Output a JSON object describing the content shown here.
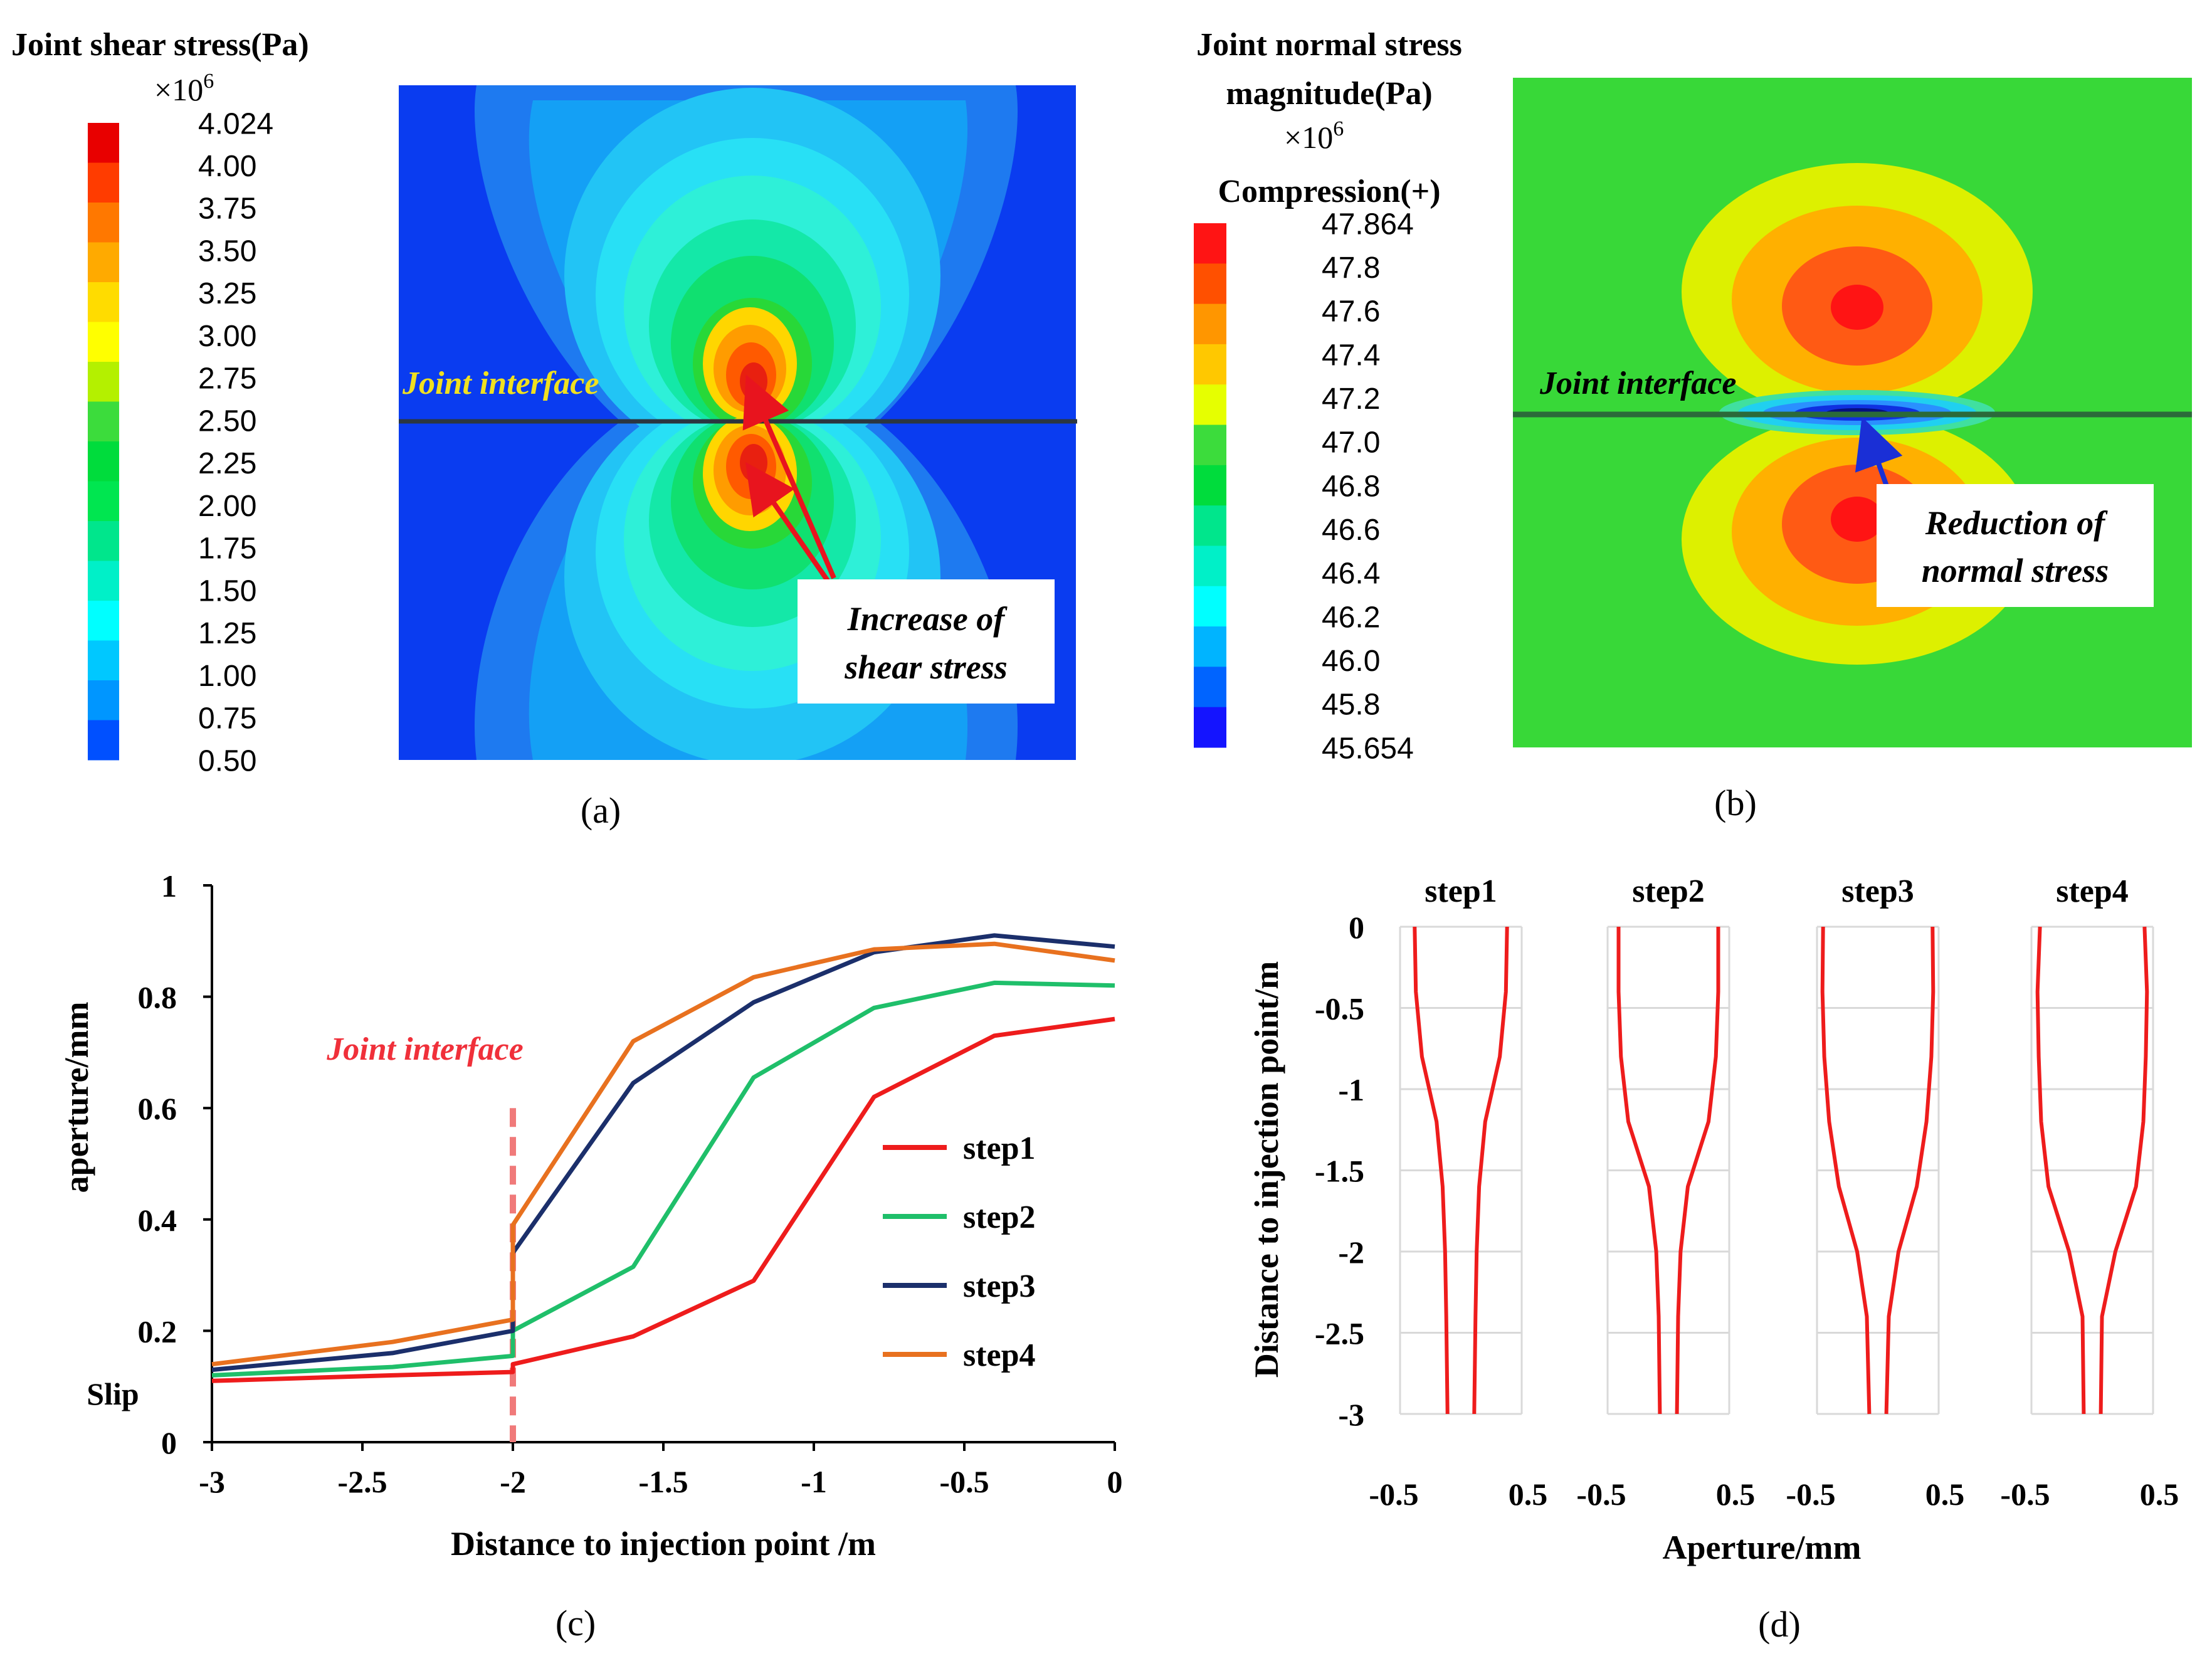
{
  "colors": {
    "step1": "#ee1c1c",
    "step2": "#1fbf6a",
    "step3": "#1b2f6b",
    "step4": "#e8711f",
    "joint_line_c": "#f07a7a",
    "arrow_red": "#e8141e",
    "arrow_blue": "#1a2fd6",
    "annotation_yellow": "#f0e020",
    "annotation_red": "#f0303a"
  },
  "panel_a": {
    "label": "(a)",
    "colorbar_title": "Joint shear stress(Pa)",
    "colorbar_scale": "×10",
    "colorbar_exp": "6",
    "colorbar_ticks": [
      "4.024",
      "4.00",
      "3.75",
      "3.50",
      "3.25",
      "3.00",
      "2.75",
      "2.50",
      "2.25",
      "2.00",
      "1.75",
      "1.50",
      "1.25",
      "1.00",
      "0.75",
      "0.50"
    ],
    "colorbar_colors": [
      "#e80000",
      "#ff3c00",
      "#ff7800",
      "#ffaa00",
      "#ffdc00",
      "#ffff00",
      "#b4f000",
      "#3cdc3c",
      "#00dc3c",
      "#00e650",
      "#00e68c",
      "#00f0c8",
      "#00ffff",
      "#00c8ff",
      "#0096ff",
      "#0050ff"
    ],
    "interface_label": "Joint interface",
    "annotation": [
      "Increase of",
      "shear stress"
    ]
  },
  "panel_b": {
    "label": "(b)",
    "colorbar_title_lines": [
      "Joint normal stress",
      "magnitude(Pa)"
    ],
    "colorbar_scale": "×10",
    "colorbar_exp": "6",
    "colorbar_subtitle": "Compression(+)",
    "colorbar_ticks": [
      "47.864",
      "47.8",
      "47.6",
      "47.4",
      "47.2",
      "47.0",
      "46.8",
      "46.6",
      "46.4",
      "46.2",
      "46.0",
      "45.8",
      "45.654"
    ],
    "colorbar_colors": [
      "#ff1414",
      "#ff5000",
      "#ff9600",
      "#ffc800",
      "#e6ff00",
      "#3cdc3c",
      "#00dc3c",
      "#00e68c",
      "#00f0c8",
      "#00ffff",
      "#00b4ff",
      "#0064ff",
      "#1414ff"
    ],
    "interface_label": "Joint interface",
    "annotation": [
      "Reduction of",
      "normal stress"
    ]
  },
  "chart_data": [
    {
      "type": "line",
      "panel": "(c)",
      "xlabel": "Distance to injection point /m",
      "ylabel": "aperture/mm",
      "xlim": [
        -3,
        0
      ],
      "ylim": [
        0,
        1
      ],
      "xticks": [
        "-3",
        "-2.5",
        "-2",
        "-1.5",
        "-1",
        "-0.5",
        "0"
      ],
      "yticks": [
        "0",
        "0.2",
        "0.4",
        "0.6",
        "0.8",
        "1"
      ],
      "grid": false,
      "legend_position": "right",
      "annotations": {
        "joint_interface": "Joint interface",
        "joint_x": -2,
        "slip": "Slip"
      },
      "series": [
        {
          "name": "step1",
          "x": [
            -3,
            -2.4,
            -2,
            -2,
            -1.6,
            -1.2,
            -0.8,
            -0.4,
            0
          ],
          "y": [
            0.11,
            0.12,
            0.126,
            0.14,
            0.19,
            0.29,
            0.62,
            0.73,
            0.76
          ]
        },
        {
          "name": "step2",
          "x": [
            -3,
            -2.4,
            -2,
            -2,
            -1.6,
            -1.2,
            -0.8,
            -0.4,
            0
          ],
          "y": [
            0.12,
            0.135,
            0.155,
            0.2,
            0.315,
            0.655,
            0.78,
            0.825,
            0.82
          ]
        },
        {
          "name": "step3",
          "x": [
            -3,
            -2.4,
            -2,
            -2,
            -1.6,
            -1.2,
            -0.8,
            -0.4,
            0
          ],
          "y": [
            0.13,
            0.16,
            0.2,
            0.34,
            0.645,
            0.79,
            0.88,
            0.91,
            0.89
          ]
        },
        {
          "name": "step4",
          "x": [
            -3,
            -2.4,
            -2,
            -2,
            -1.6,
            -1.2,
            -0.8,
            -0.4,
            0
          ],
          "y": [
            0.14,
            0.18,
            0.22,
            0.39,
            0.72,
            0.835,
            0.885,
            0.895,
            0.865
          ]
        }
      ]
    },
    {
      "type": "line",
      "panel": "(d)",
      "xlabel": "Aperture/mm",
      "ylabel": "Distance to injection point/m",
      "xlim": [
        -0.5,
        0.5
      ],
      "ylim": [
        -3,
        0
      ],
      "xticks": [
        "-0.5",
        "0.5"
      ],
      "yticks": [
        "0",
        "-0.5",
        "-1",
        "-1.5",
        "-2",
        "-2.5",
        "-3"
      ],
      "grid": true,
      "subplots": [
        {
          "title": "step1",
          "y": [
            0,
            -0.4,
            -0.8,
            -1.2,
            -1.6,
            -2,
            -2.4,
            -3
          ],
          "half_aperture": [
            0.38,
            0.37,
            0.32,
            0.2,
            0.15,
            0.13,
            0.12,
            0.11
          ]
        },
        {
          "title": "step2",
          "y": [
            0,
            -0.4,
            -0.8,
            -1.2,
            -1.6,
            -2,
            -2.4,
            -3
          ],
          "half_aperture": [
            0.41,
            0.41,
            0.39,
            0.33,
            0.16,
            0.1,
            0.08,
            0.07
          ]
        },
        {
          "title": "step3",
          "y": [
            0,
            -0.4,
            -0.8,
            -1.2,
            -1.6,
            -2,
            -2.4,
            -3
          ],
          "half_aperture": [
            0.45,
            0.455,
            0.44,
            0.4,
            0.32,
            0.17,
            0.09,
            0.07
          ]
        },
        {
          "title": "step4",
          "y": [
            0,
            -0.4,
            -0.8,
            -1.2,
            -1.6,
            -2,
            -2.4,
            -3
          ],
          "half_aperture": [
            0.43,
            0.45,
            0.44,
            0.42,
            0.36,
            0.19,
            0.08,
            0.07
          ]
        }
      ]
    }
  ]
}
